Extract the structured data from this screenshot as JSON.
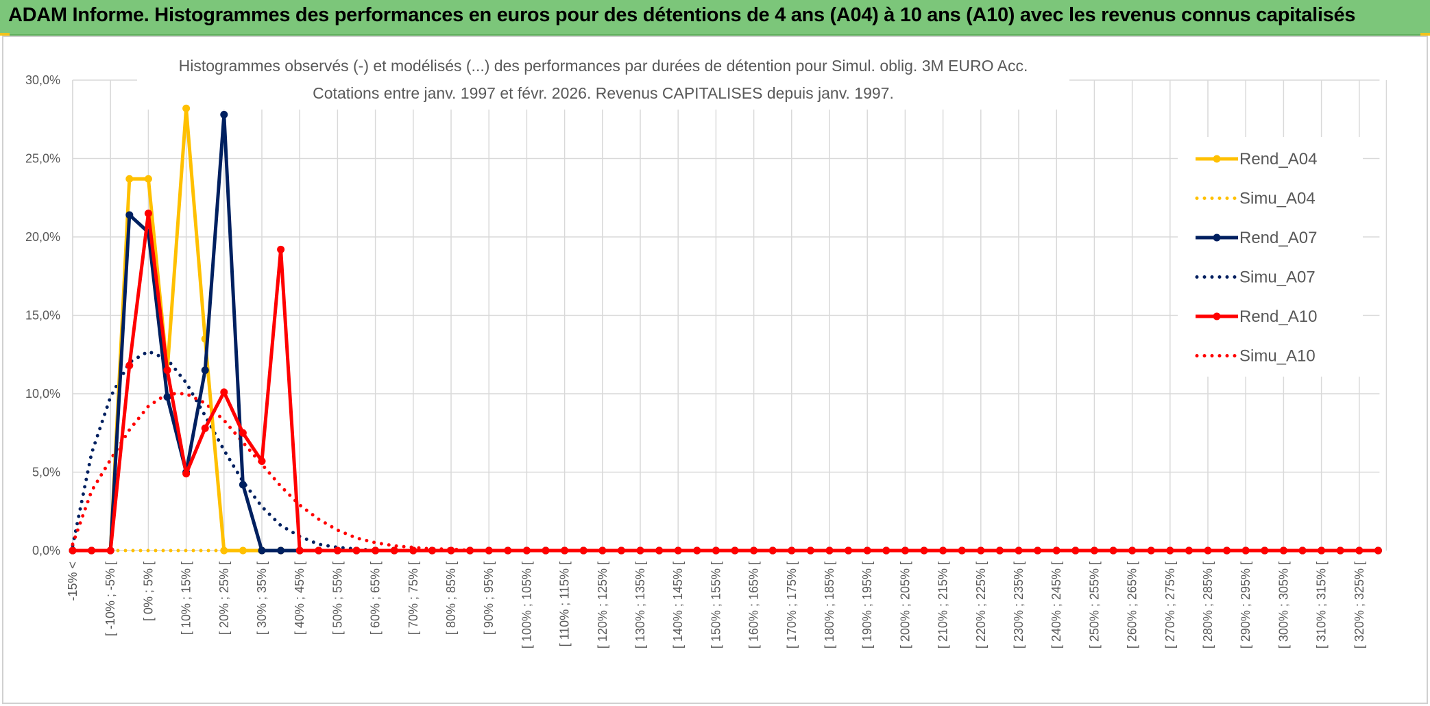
{
  "header": {
    "banner_title": "ADAM Informe. Histogrammes des performances en euros pour des détentions de 4 ans (A04) à 10 ans (A10) avec les revenus connus capitalisés"
  },
  "colors": {
    "banner_bg": "#7cc67a",
    "A04": "#ffc000",
    "A07": "#002060",
    "A10": "#ff0000",
    "grid": "#d9d9d9",
    "text": "#595959"
  },
  "chart_data": {
    "type": "line",
    "title_line1": "Histogrammes observés (-) et modélisés (...) des performances par durées de détention pour Simul. oblig. 3M EURO Acc.",
    "title_line2": "Cotations entre janv. 1997 et févr. 2026. Revenus CAPITALISES depuis janv. 1997.",
    "y_ticks": [
      "0,0%",
      "5,0%",
      "10,0%",
      "15,0%",
      "20,0%",
      "25,0%",
      "30,0%"
    ],
    "ylim": [
      0,
      30
    ],
    "grid": true,
    "legend_position": "right",
    "x_labels": [
      "-15% <",
      "[ -10% ; -5% [",
      "[ 0% ; 5% [",
      "[ 10% ; 15% [",
      "[ 20% ; 25% [",
      "[ 30% ; 35% [",
      "[ 40% ; 45% [",
      "[ 50% ; 55% [",
      "[ 60% ; 65% [",
      "[ 70% ; 75% [",
      "[ 80% ; 85% [",
      "[ 90% ; 95% [",
      "[ 100% ; 105% [",
      "[ 110% ; 115% [",
      "[ 120% ; 125% [",
      "[ 130% ; 135% [",
      "[ 140% ; 145% [",
      "[ 150% ; 155% [",
      "[ 160% ; 165% [",
      "[ 170% ; 175% [",
      "[ 180% ; 185% [",
      "[ 190% ; 195% [",
      "[ 200% ; 205% [",
      "[ 210% ; 215% [",
      "[ 220% ; 225% [",
      "[ 230% ; 235% [",
      "[ 240% ; 245% [",
      "[ 250% ; 255% [",
      "[ 260% ; 265% [",
      "[ 270% ; 275% [",
      "[ 280% ; 285% [",
      "[ 290% ; 295% [",
      "[ 300% ; 305% [",
      "[ 310% ; 315% [",
      "[ 320% ; 325% ["
    ],
    "n_bins": 70,
    "series": [
      {
        "name": "Rend_A04",
        "style": "solid",
        "color": "#ffc000",
        "values": [
          0,
          0,
          0,
          23.7,
          23.7,
          11.5,
          28.2,
          13.5,
          0,
          0,
          0,
          0,
          0,
          0,
          0,
          0,
          0,
          0,
          0,
          0,
          0,
          0,
          0,
          0,
          0,
          0,
          0,
          0,
          0,
          0,
          0,
          0,
          0,
          0,
          0,
          0,
          0,
          0,
          0,
          0,
          0,
          0,
          0,
          0,
          0,
          0,
          0,
          0,
          0,
          0,
          0,
          0,
          0,
          0,
          0,
          0,
          0,
          0,
          0,
          0,
          0,
          0,
          0,
          0,
          0,
          0,
          0,
          0,
          0,
          0
        ]
      },
      {
        "name": "Simu_A04",
        "style": "dotted",
        "color": "#ffc000",
        "values": [
          0,
          0,
          0,
          0,
          0,
          0,
          0,
          0,
          0,
          0,
          0,
          0,
          0,
          0,
          0,
          0,
          0,
          0,
          0,
          0,
          0,
          0,
          0,
          0,
          0,
          0,
          0,
          0,
          0,
          0,
          0,
          0,
          0,
          0,
          0,
          0,
          0,
          0,
          0,
          0,
          0,
          0,
          0,
          0,
          0,
          0,
          0,
          0,
          0,
          0,
          0,
          0,
          0,
          0,
          0,
          0,
          0,
          0,
          0,
          0,
          0,
          0,
          0,
          0,
          0,
          0,
          0,
          0,
          0,
          0
        ]
      },
      {
        "name": "Rend_A07",
        "style": "solid",
        "color": "#002060",
        "values": [
          0,
          0,
          0,
          21.4,
          20.3,
          9.8,
          5.0,
          11.5,
          27.8,
          4.2,
          0,
          0,
          0,
          0,
          0,
          0,
          0,
          0,
          0,
          0,
          0,
          0,
          0,
          0,
          0,
          0,
          0,
          0,
          0,
          0,
          0,
          0,
          0,
          0,
          0,
          0,
          0,
          0,
          0,
          0,
          0,
          0,
          0,
          0,
          0,
          0,
          0,
          0,
          0,
          0,
          0,
          0,
          0,
          0,
          0,
          0,
          0,
          0,
          0,
          0,
          0,
          0,
          0,
          0,
          0,
          0,
          0,
          0,
          0,
          0
        ]
      },
      {
        "name": "Simu_A07",
        "style": "dotted",
        "color": "#002060",
        "values": [
          0.3,
          6.2,
          9.8,
          12.0,
          12.7,
          12.2,
          10.7,
          8.6,
          6.4,
          4.4,
          2.8,
          1.6,
          0.9,
          0.4,
          0.2,
          0.1,
          0,
          0,
          0,
          0,
          0,
          0,
          0,
          0,
          0,
          0,
          0,
          0,
          0,
          0,
          0,
          0,
          0,
          0,
          0,
          0,
          0,
          0,
          0,
          0,
          0,
          0,
          0,
          0,
          0,
          0,
          0,
          0,
          0,
          0,
          0,
          0,
          0,
          0,
          0,
          0,
          0,
          0,
          0,
          0,
          0,
          0,
          0,
          0,
          0,
          0,
          0,
          0,
          0,
          0
        ]
      },
      {
        "name": "Rend_A10",
        "style": "solid",
        "color": "#ff0000",
        "values": [
          0,
          0,
          0,
          11.8,
          21.5,
          11.5,
          4.9,
          7.8,
          10.1,
          7.5,
          5.7,
          19.2,
          0,
          0,
          0,
          0,
          0,
          0,
          0,
          0,
          0,
          0,
          0,
          0,
          0,
          0,
          0,
          0,
          0,
          0,
          0,
          0,
          0,
          0,
          0,
          0,
          0,
          0,
          0,
          0,
          0,
          0,
          0,
          0,
          0,
          0,
          0,
          0,
          0,
          0,
          0,
          0,
          0,
          0,
          0,
          0,
          0,
          0,
          0,
          0,
          0,
          0,
          0,
          0,
          0,
          0,
          0,
          0,
          0,
          0
        ]
      },
      {
        "name": "Simu_A10",
        "style": "dotted",
        "color": "#ff0000",
        "values": [
          0.4,
          3.8,
          5.8,
          7.7,
          9.2,
          10.0,
          10.0,
          9.4,
          8.3,
          6.9,
          5.5,
          4.1,
          2.9,
          2.0,
          1.3,
          0.8,
          0.5,
          0.3,
          0.2,
          0.1,
          0.1,
          0,
          0,
          0,
          0,
          0,
          0,
          0,
          0,
          0,
          0,
          0,
          0,
          0,
          0,
          0,
          0,
          0,
          0,
          0,
          0,
          0,
          0,
          0,
          0,
          0,
          0,
          0,
          0,
          0,
          0,
          0,
          0,
          0,
          0,
          0,
          0,
          0,
          0,
          0,
          0,
          0,
          0,
          0,
          0,
          0,
          0,
          0,
          0,
          0
        ]
      }
    ]
  }
}
